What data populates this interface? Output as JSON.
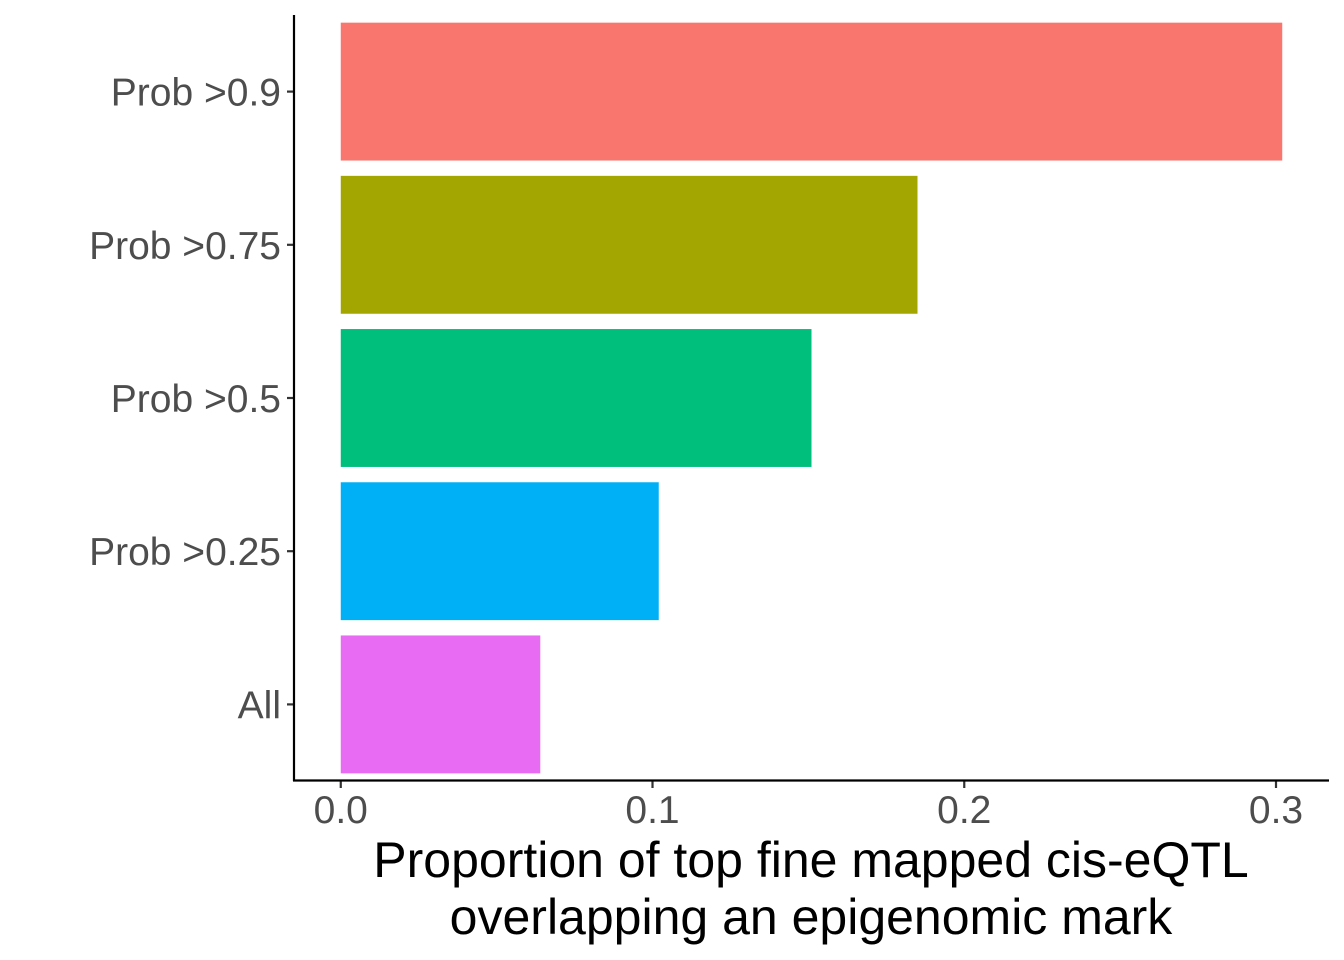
{
  "chart_data": {
    "type": "bar",
    "orientation": "horizontal",
    "categories": [
      "Prob >0.9",
      "Prob >0.75",
      "Prob >0.5",
      "Prob >0.25",
      "All"
    ],
    "values": [
      0.302,
      0.185,
      0.151,
      0.102,
      0.064
    ],
    "colors": [
      "#F8766D",
      "#A3A500",
      "#00BF7D",
      "#00B0F6",
      "#E76BF3"
    ],
    "xlabel": [
      "Proportion of top fine mapped cis-eQTL",
      "overlapping an epigenomic mark"
    ],
    "ylabel": "",
    "xlim": [
      -0.015,
      0.317
    ],
    "x_ticks": [
      0.0,
      0.1,
      0.2,
      0.3
    ],
    "x_tick_labels": [
      "0.0",
      "0.1",
      "0.2",
      "0.3"
    ],
    "grid": false,
    "legend": "none"
  }
}
